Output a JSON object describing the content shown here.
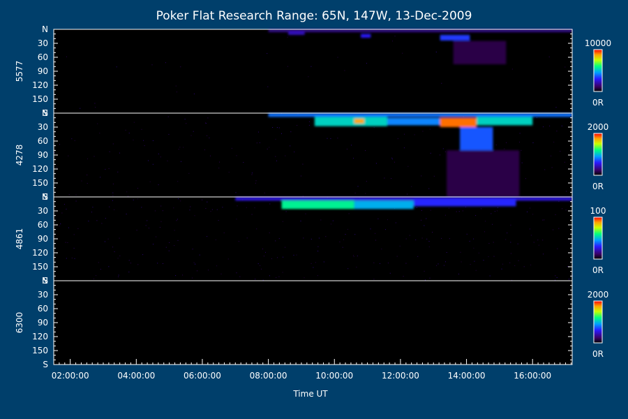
{
  "chart_data": {
    "type": "heatmap",
    "title": "Poker Flat Research Range: 65N, 147W, 13-Dec-2009",
    "xlabel": "Time UT",
    "x_ticks": [
      "02:00:00",
      "04:00:00",
      "06:00:00",
      "08:00:00",
      "10:00:00",
      "12:00:00",
      "14:00:00",
      "16:00:00"
    ],
    "x_tick_hours": [
      2,
      4,
      6,
      8,
      10,
      12,
      14,
      16
    ],
    "xlim_hours": [
      1.5,
      17.2
    ],
    "y_ticks": [
      "N",
      "30",
      "60",
      "90",
      "120",
      "150",
      "S"
    ],
    "y_tick_values": [
      0,
      30,
      60,
      90,
      120,
      150,
      180
    ],
    "ylim": [
      0,
      180
    ],
    "panels": [
      {
        "wavelength": "5577",
        "colorbar_max": "10000",
        "colorbar_min": "0R",
        "emission": {
          "background": 0.01,
          "features": [
            {
              "t0": 8.0,
              "t1": 17.2,
              "y0": 0,
              "y1": 6,
              "intensity": 0.18
            },
            {
              "t0": 8.6,
              "t1": 9.1,
              "y0": 4,
              "y1": 12,
              "intensity": 0.22
            },
            {
              "t0": 10.8,
              "t1": 11.1,
              "y0": 10,
              "y1": 18,
              "intensity": 0.28
            },
            {
              "t0": 13.2,
              "t1": 14.1,
              "y0": 12,
              "y1": 24,
              "intensity": 0.32
            },
            {
              "t0": 13.6,
              "t1": 15.2,
              "y0": 25,
              "y1": 75,
              "intensity": 0.1
            }
          ]
        }
      },
      {
        "wavelength": "4278",
        "colorbar_max": "2000",
        "colorbar_min": "0R",
        "emission": {
          "background": 0.06,
          "features": [
            {
              "t0": 8.0,
              "t1": 17.2,
              "y0": 0,
              "y1": 8,
              "intensity": 0.38
            },
            {
              "t0": 9.4,
              "t1": 11.6,
              "y0": 8,
              "y1": 28,
              "intensity": 0.5
            },
            {
              "t0": 10.6,
              "t1": 10.9,
              "y0": 12,
              "y1": 22,
              "intensity": 0.85
            },
            {
              "t0": 11.6,
              "t1": 13.2,
              "y0": 10,
              "y1": 26,
              "intensity": 0.4
            },
            {
              "t0": 13.2,
              "t1": 14.3,
              "y0": 10,
              "y1": 30,
              "intensity": 0.9
            },
            {
              "t0": 14.3,
              "t1": 16.0,
              "y0": 8,
              "y1": 26,
              "intensity": 0.5
            },
            {
              "t0": 13.8,
              "t1": 14.8,
              "y0": 30,
              "y1": 80,
              "intensity": 0.35
            },
            {
              "t0": 13.4,
              "t1": 15.6,
              "y0": 80,
              "y1": 180,
              "intensity": 0.1
            }
          ]
        }
      },
      {
        "wavelength": "4861",
        "colorbar_max": "100",
        "colorbar_min": "0R",
        "emission": {
          "background": 0.1,
          "features": [
            {
              "t0": 7.0,
              "t1": 17.2,
              "y0": 0,
              "y1": 8,
              "intensity": 0.25
            },
            {
              "t0": 8.4,
              "t1": 10.6,
              "y0": 8,
              "y1": 26,
              "intensity": 0.55
            },
            {
              "t0": 10.6,
              "t1": 12.4,
              "y0": 8,
              "y1": 26,
              "intensity": 0.45
            },
            {
              "t0": 12.4,
              "t1": 15.5,
              "y0": 4,
              "y1": 20,
              "intensity": 0.3
            }
          ]
        }
      },
      {
        "wavelength": "6300",
        "colorbar_max": "2000",
        "colorbar_min": "0R",
        "emission": {
          "background": 0.0,
          "features": []
        }
      }
    ],
    "colormap": [
      "#000000",
      "#3a0066",
      "#2a1aff",
      "#00a0ff",
      "#00ff80",
      "#c8ff00",
      "#ffa000",
      "#ff0000"
    ],
    "grid": false,
    "legend": "colorbars-right"
  }
}
